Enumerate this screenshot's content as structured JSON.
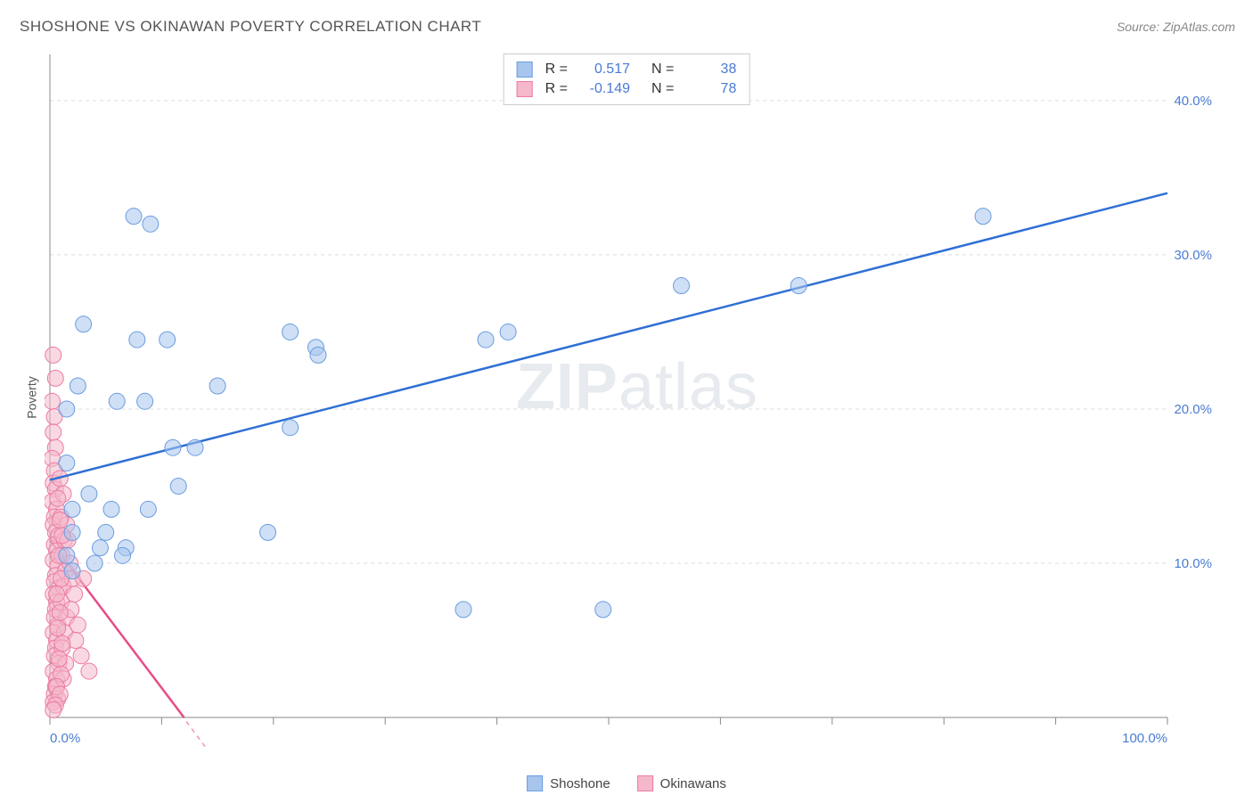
{
  "title": "SHOSHONE VS OKINAWAN POVERTY CORRELATION CHART",
  "source": "Source: ZipAtlas.com",
  "ylabel": "Poverty",
  "watermark_zip": "ZIP",
  "watermark_atlas": "atlas",
  "chart": {
    "type": "scatter",
    "background_color": "#ffffff",
    "grid_color": "#dddddd",
    "axis_color": "#888888",
    "xlim": [
      0,
      100
    ],
    "ylim": [
      0,
      43
    ],
    "xtick_positions": [
      0,
      10,
      20,
      30,
      40,
      50,
      60,
      70,
      80,
      90,
      100
    ],
    "xtick_labels_shown": {
      "0": "0.0%",
      "100": "100.0%"
    },
    "ytick_positions": [
      10,
      20,
      30,
      40
    ],
    "ytick_labels": {
      "10": "10.0%",
      "20": "20.0%",
      "30": "30.0%",
      "40": "40.0%"
    },
    "label_color": "#4a7bd4",
    "label_fontsize": 15,
    "marker_radius": 9,
    "marker_opacity": 0.55,
    "marker_stroke_width": 1,
    "series": [
      {
        "name": "Shoshone",
        "fill_color": "#a7c5ed",
        "stroke_color": "#6a9de0",
        "line_color": "#2f6fd4",
        "line_width": 2.5,
        "r": "0.517",
        "n": "38",
        "trend": {
          "x1": 0,
          "y1": 15.4,
          "x2": 100,
          "y2": 34.0
        },
        "points": [
          [
            3.0,
            25.5
          ],
          [
            7.8,
            24.5
          ],
          [
            10.5,
            24.5
          ],
          [
            7.5,
            32.5
          ],
          [
            9.0,
            32.0
          ],
          [
            21.5,
            25.0
          ],
          [
            23.8,
            24.0
          ],
          [
            24.0,
            23.5
          ],
          [
            21.5,
            18.8
          ],
          [
            39.0,
            24.5
          ],
          [
            41.0,
            25.0
          ],
          [
            56.5,
            28.0
          ],
          [
            67.0,
            28.0
          ],
          [
            83.5,
            32.5
          ],
          [
            1.5,
            16.5
          ],
          [
            6.0,
            20.5
          ],
          [
            8.5,
            20.5
          ],
          [
            15.0,
            21.5
          ],
          [
            11.0,
            17.5
          ],
          [
            13.0,
            17.5
          ],
          [
            11.5,
            15.0
          ],
          [
            2.0,
            13.5
          ],
          [
            5.5,
            13.5
          ],
          [
            8.8,
            13.5
          ],
          [
            2.0,
            12.0
          ],
          [
            5.0,
            12.0
          ],
          [
            4.5,
            11.0
          ],
          [
            6.8,
            11.0
          ],
          [
            6.5,
            10.5
          ],
          [
            19.5,
            12.0
          ],
          [
            37.0,
            7.0
          ],
          [
            49.5,
            7.0
          ],
          [
            2.0,
            9.5
          ],
          [
            4.0,
            10.0
          ],
          [
            1.5,
            10.5
          ],
          [
            3.5,
            14.5
          ],
          [
            1.5,
            20.0
          ],
          [
            2.5,
            21.5
          ]
        ]
      },
      {
        "name": "Okinawans",
        "fill_color": "#f4b8ca",
        "stroke_color": "#ec7ba3",
        "line_color": "#e84c88",
        "line_width": 2.5,
        "r": "-0.149",
        "n": "78",
        "trend": {
          "x1": 0,
          "y1": 11.5,
          "x2": 12,
          "y2": 0
        },
        "trend_dashed_extension": {
          "x1": 6,
          "y1": 5.75,
          "x2": 14,
          "y2": -2
        },
        "points": [
          [
            0.3,
            23.5
          ],
          [
            0.5,
            22.0
          ],
          [
            0.2,
            20.5
          ],
          [
            0.4,
            19.5
          ],
          [
            0.3,
            18.5
          ],
          [
            0.5,
            17.5
          ],
          [
            0.2,
            16.8
          ],
          [
            0.4,
            16.0
          ],
          [
            0.3,
            15.2
          ],
          [
            0.5,
            14.8
          ],
          [
            0.2,
            14.0
          ],
          [
            0.6,
            13.5
          ],
          [
            0.4,
            13.0
          ],
          [
            0.3,
            12.5
          ],
          [
            0.5,
            12.0
          ],
          [
            0.8,
            11.8
          ],
          [
            0.4,
            11.2
          ],
          [
            0.6,
            10.8
          ],
          [
            0.3,
            10.2
          ],
          [
            0.7,
            9.8
          ],
          [
            0.5,
            9.2
          ],
          [
            0.4,
            8.8
          ],
          [
            0.8,
            8.4
          ],
          [
            0.3,
            8.0
          ],
          [
            0.6,
            7.5
          ],
          [
            0.5,
            7.0
          ],
          [
            0.4,
            6.5
          ],
          [
            0.7,
            6.0
          ],
          [
            0.3,
            5.5
          ],
          [
            0.6,
            5.0
          ],
          [
            0.5,
            4.5
          ],
          [
            0.4,
            4.0
          ],
          [
            0.8,
            3.5
          ],
          [
            0.3,
            3.0
          ],
          [
            0.6,
            2.5
          ],
          [
            0.5,
            2.0
          ],
          [
            0.4,
            1.5
          ],
          [
            0.7,
            1.2
          ],
          [
            0.3,
            1.0
          ],
          [
            1.2,
            14.5
          ],
          [
            1.0,
            13.0
          ],
          [
            1.5,
            12.5
          ],
          [
            1.3,
            11.5
          ],
          [
            1.1,
            10.5
          ],
          [
            1.4,
            9.5
          ],
          [
            1.2,
            8.5
          ],
          [
            1.0,
            7.5
          ],
          [
            1.5,
            6.5
          ],
          [
            1.3,
            5.5
          ],
          [
            1.1,
            4.5
          ],
          [
            1.4,
            3.5
          ],
          [
            1.2,
            2.5
          ],
          [
            1.6,
            11.5
          ],
          [
            1.8,
            10.0
          ],
          [
            2.0,
            9.0
          ],
          [
            2.2,
            8.0
          ],
          [
            1.9,
            7.0
          ],
          [
            2.5,
            6.0
          ],
          [
            2.3,
            5.0
          ],
          [
            2.8,
            4.0
          ],
          [
            3.0,
            9.0
          ],
          [
            3.5,
            3.0
          ],
          [
            0.9,
            15.5
          ],
          [
            0.7,
            14.2
          ],
          [
            0.9,
            12.8
          ],
          [
            1.1,
            11.8
          ],
          [
            0.8,
            10.5
          ],
          [
            1.0,
            9.0
          ],
          [
            0.6,
            8.0
          ],
          [
            0.9,
            6.8
          ],
          [
            0.7,
            5.8
          ],
          [
            1.1,
            4.8
          ],
          [
            0.8,
            3.8
          ],
          [
            1.0,
            2.8
          ],
          [
            0.6,
            2.0
          ],
          [
            0.9,
            1.5
          ],
          [
            0.5,
            0.8
          ],
          [
            0.3,
            0.5
          ]
        ]
      }
    ]
  },
  "legend": {
    "series1_label": "Shoshone",
    "series2_label": "Okinawans"
  },
  "stats_box": {
    "r_label": "R =",
    "n_label": "N ="
  }
}
